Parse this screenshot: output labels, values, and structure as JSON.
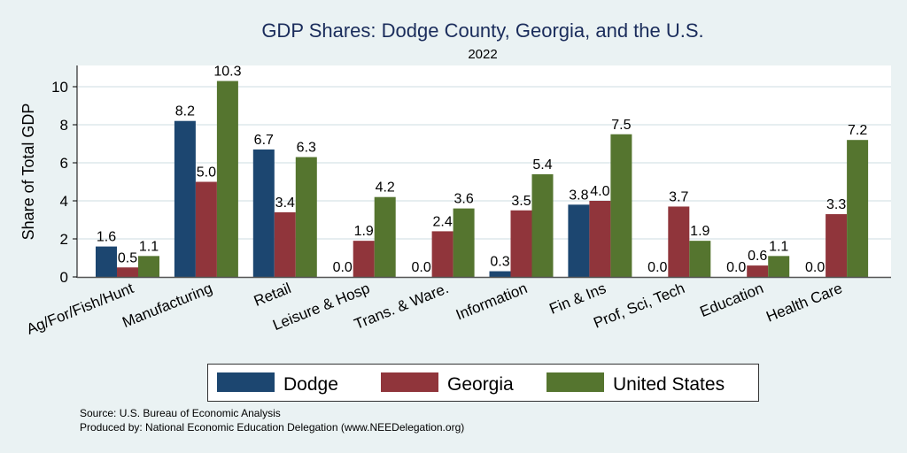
{
  "chart_data": {
    "type": "bar",
    "title": "GDP Shares: Dodge County, Georgia, and the U.S.",
    "subtitle": "2022",
    "xlabel": "",
    "ylabel": "Share of Total GDP",
    "ylim": [
      0,
      11
    ],
    "yticks": [
      0,
      2,
      4,
      6,
      8,
      10
    ],
    "grid": true,
    "legend_position": "bottom",
    "categories": [
      "Ag/For/Fish/Hunt",
      "Manufacturing",
      "Retail",
      "Leisure & Hosp",
      "Trans. & Ware.",
      "Information",
      "Fin & Ins",
      "Prof, Sci, Tech",
      "Education",
      "Health Care"
    ],
    "series": [
      {
        "name": "Dodge",
        "color": "#1c4670",
        "values": [
          1.6,
          8.2,
          6.7,
          0.0,
          0.0,
          0.3,
          3.8,
          0.0,
          0.0,
          0.0
        ]
      },
      {
        "name": "Georgia",
        "color": "#90353b",
        "values": [
          0.5,
          5.0,
          3.4,
          1.9,
          2.4,
          3.5,
          4.0,
          3.7,
          0.6,
          3.3
        ]
      },
      {
        "name": "United States",
        "color": "#55752f",
        "values": [
          1.1,
          10.3,
          6.3,
          4.2,
          3.6,
          5.4,
          7.5,
          1.9,
          1.1,
          7.2
        ]
      }
    ],
    "notes": [
      "Source: U.S. Bureau of Economic Analysis",
      "Produced by: National Economic Education Delegation (www.NEEDelegation.org)"
    ]
  }
}
